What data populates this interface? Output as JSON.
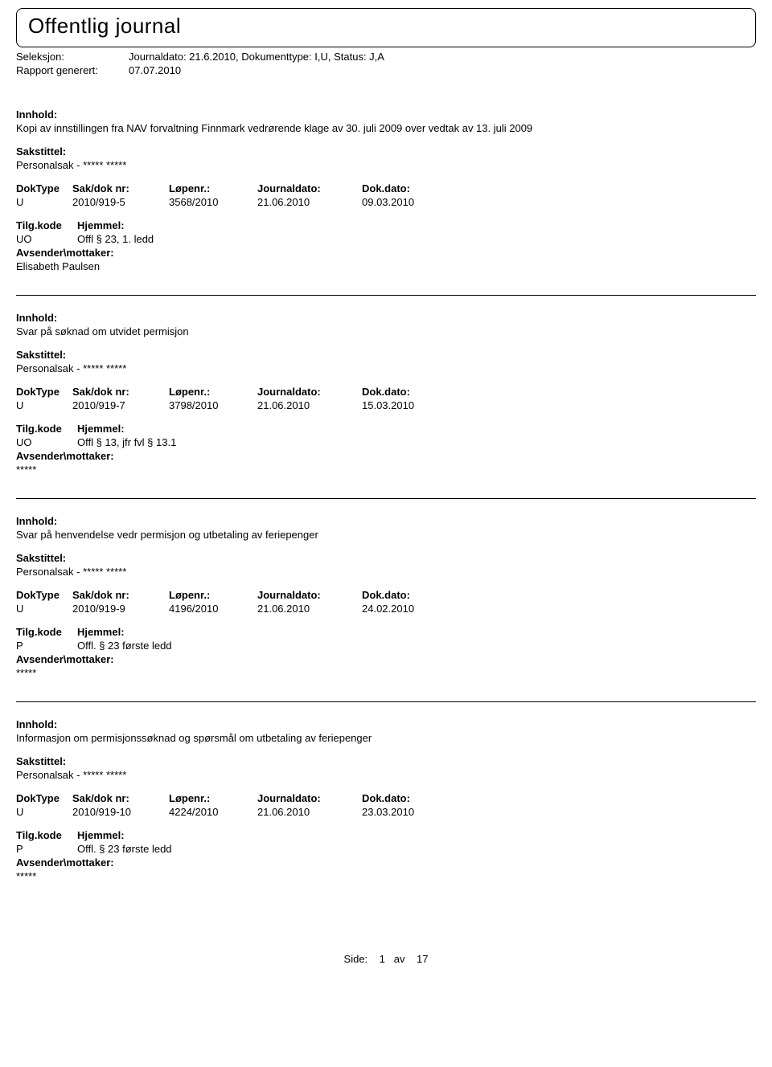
{
  "title": "Offentlig journal",
  "header": {
    "seleksjon_label": "Seleksjon:",
    "seleksjon_value": "Journaldato: 21.6.2010, Dokumenttype: I,U, Status: J,A",
    "rapport_label": "Rapport generert:",
    "rapport_value": "07.07.2010"
  },
  "labels": {
    "innhold": "Innhold:",
    "sakstittel": "Sakstittel:",
    "doktype": "DokType",
    "saknr": "Sak/dok nr:",
    "lopenr": "Løpenr.:",
    "journaldato": "Journaldato:",
    "dokdato": "Dok.dato:",
    "tilgkode": "Tilg.kode",
    "hjemmel": "Hjemmel:",
    "avsender": "Avsender\\mottaker:"
  },
  "entries": [
    {
      "innhold": "Kopi av innstillingen fra NAV forvaltning Finnmark vedrørende klage av 30. juli 2009 over vedtak av 13. juli 2009",
      "sakstittel": "Personalsak - ***** *****",
      "doktype": "U",
      "saknr": "2010/919-5",
      "lopenr": "3568/2010",
      "journaldato": "21.06.2010",
      "dokdato": "09.03.2010",
      "tilgkode": "UO",
      "hjemmel": "Offl § 23, 1. ledd",
      "avsender": "Elisabeth Paulsen"
    },
    {
      "innhold": "Svar på søknad om utvidet permisjon",
      "sakstittel": "Personalsak - ***** *****",
      "doktype": "U",
      "saknr": "2010/919-7",
      "lopenr": "3798/2010",
      "journaldato": "21.06.2010",
      "dokdato": "15.03.2010",
      "tilgkode": "UO",
      "hjemmel": "Offl § 13, jfr fvl § 13.1",
      "avsender": "*****"
    },
    {
      "innhold": "Svar på henvendelse vedr permisjon og utbetaling av feriepenger",
      "sakstittel": "Personalsak - ***** *****",
      "doktype": "U",
      "saknr": "2010/919-9",
      "lopenr": "4196/2010",
      "journaldato": "21.06.2010",
      "dokdato": "24.02.2010",
      "tilgkode": "P",
      "hjemmel": "Offl. § 23 første ledd",
      "avsender": "*****"
    },
    {
      "innhold": "Informasjon om permisjonssøknad og spørsmål om utbetaling av feriepenger",
      "sakstittel": "Personalsak - ***** *****",
      "doktype": "U",
      "saknr": "2010/919-10",
      "lopenr": "4224/2010",
      "journaldato": "21.06.2010",
      "dokdato": "23.03.2010",
      "tilgkode": "P",
      "hjemmel": "Offl. § 23 første ledd",
      "avsender": "*****"
    }
  ],
  "footer": {
    "side_label": "Side:",
    "page_current": "1",
    "av": "av",
    "page_total": "17"
  }
}
